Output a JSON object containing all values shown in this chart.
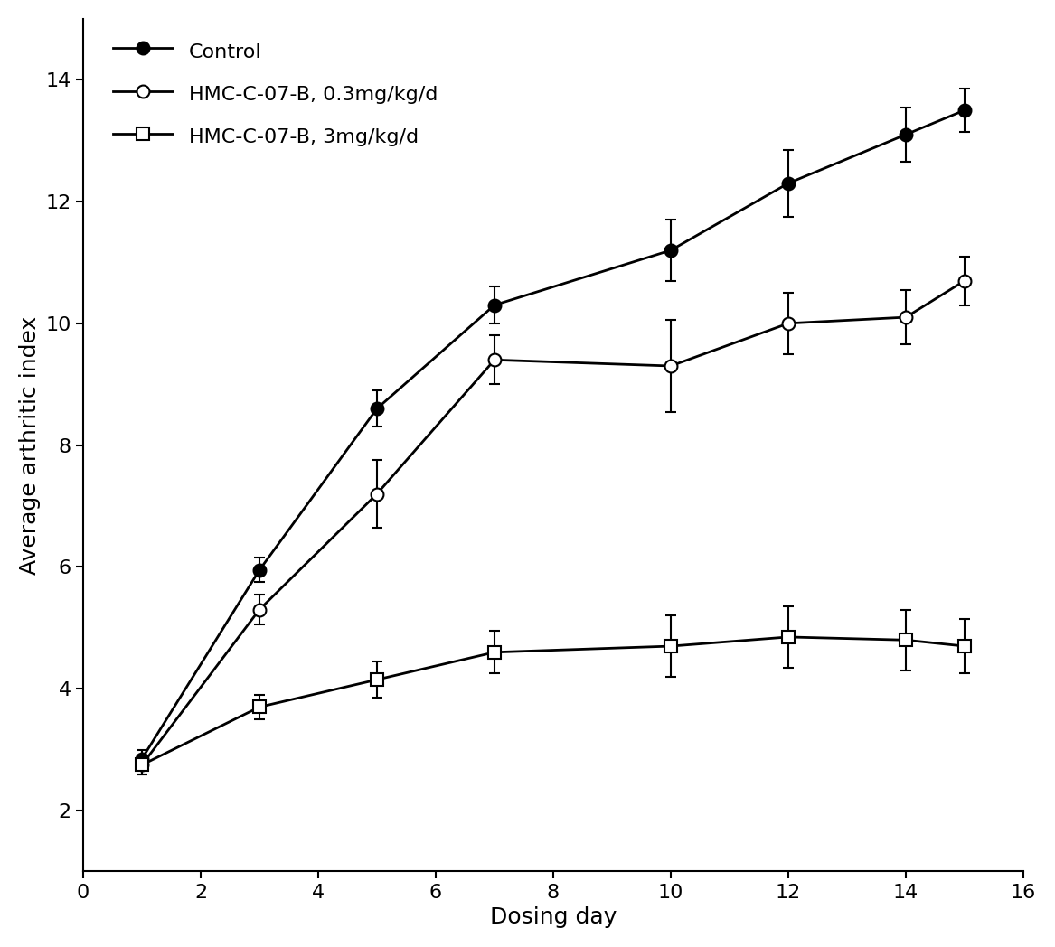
{
  "title": "",
  "xlabel": "Dosing day",
  "ylabel": "Average arthritic index",
  "xlim": [
    0,
    16
  ],
  "ylim": [
    1,
    15
  ],
  "xticks": [
    0,
    2,
    4,
    6,
    8,
    10,
    12,
    14,
    16
  ],
  "yticks": [
    2,
    4,
    6,
    8,
    10,
    12,
    14
  ],
  "control": {
    "x": [
      1,
      3,
      5,
      7,
      10,
      12,
      14,
      15
    ],
    "y": [
      2.85,
      5.95,
      8.6,
      10.3,
      11.2,
      12.3,
      13.1,
      13.5
    ],
    "yerr": [
      0.15,
      0.2,
      0.3,
      0.3,
      0.5,
      0.55,
      0.45,
      0.35
    ],
    "label": "Control",
    "color": "#000000",
    "marker": "o",
    "markerfacecolor": "#000000",
    "markersize": 10,
    "linewidth": 2
  },
  "low_dose": {
    "x": [
      1,
      3,
      5,
      7,
      10,
      12,
      14,
      15
    ],
    "y": [
      2.75,
      5.3,
      7.2,
      9.4,
      9.3,
      10.0,
      10.1,
      10.7
    ],
    "yerr": [
      0.15,
      0.25,
      0.55,
      0.4,
      0.75,
      0.5,
      0.45,
      0.4
    ],
    "label": "HMC-C-07-B, 0.3mg/kg/d",
    "color": "#000000",
    "marker": "o",
    "markerfacecolor": "#ffffff",
    "markersize": 10,
    "linewidth": 2
  },
  "high_dose": {
    "x": [
      1,
      3,
      5,
      7,
      10,
      12,
      14,
      15
    ],
    "y": [
      2.75,
      3.7,
      4.15,
      4.6,
      4.7,
      4.85,
      4.8,
      4.7
    ],
    "yerr": [
      0.15,
      0.2,
      0.3,
      0.35,
      0.5,
      0.5,
      0.5,
      0.45
    ],
    "label": "HMC-C-07-B, 3mg/kg/d",
    "color": "#000000",
    "marker": "s",
    "markerfacecolor": "#ffffff",
    "markersize": 10,
    "linewidth": 2
  },
  "figsize": [
    11.67,
    10.48
  ],
  "dpi": 100
}
